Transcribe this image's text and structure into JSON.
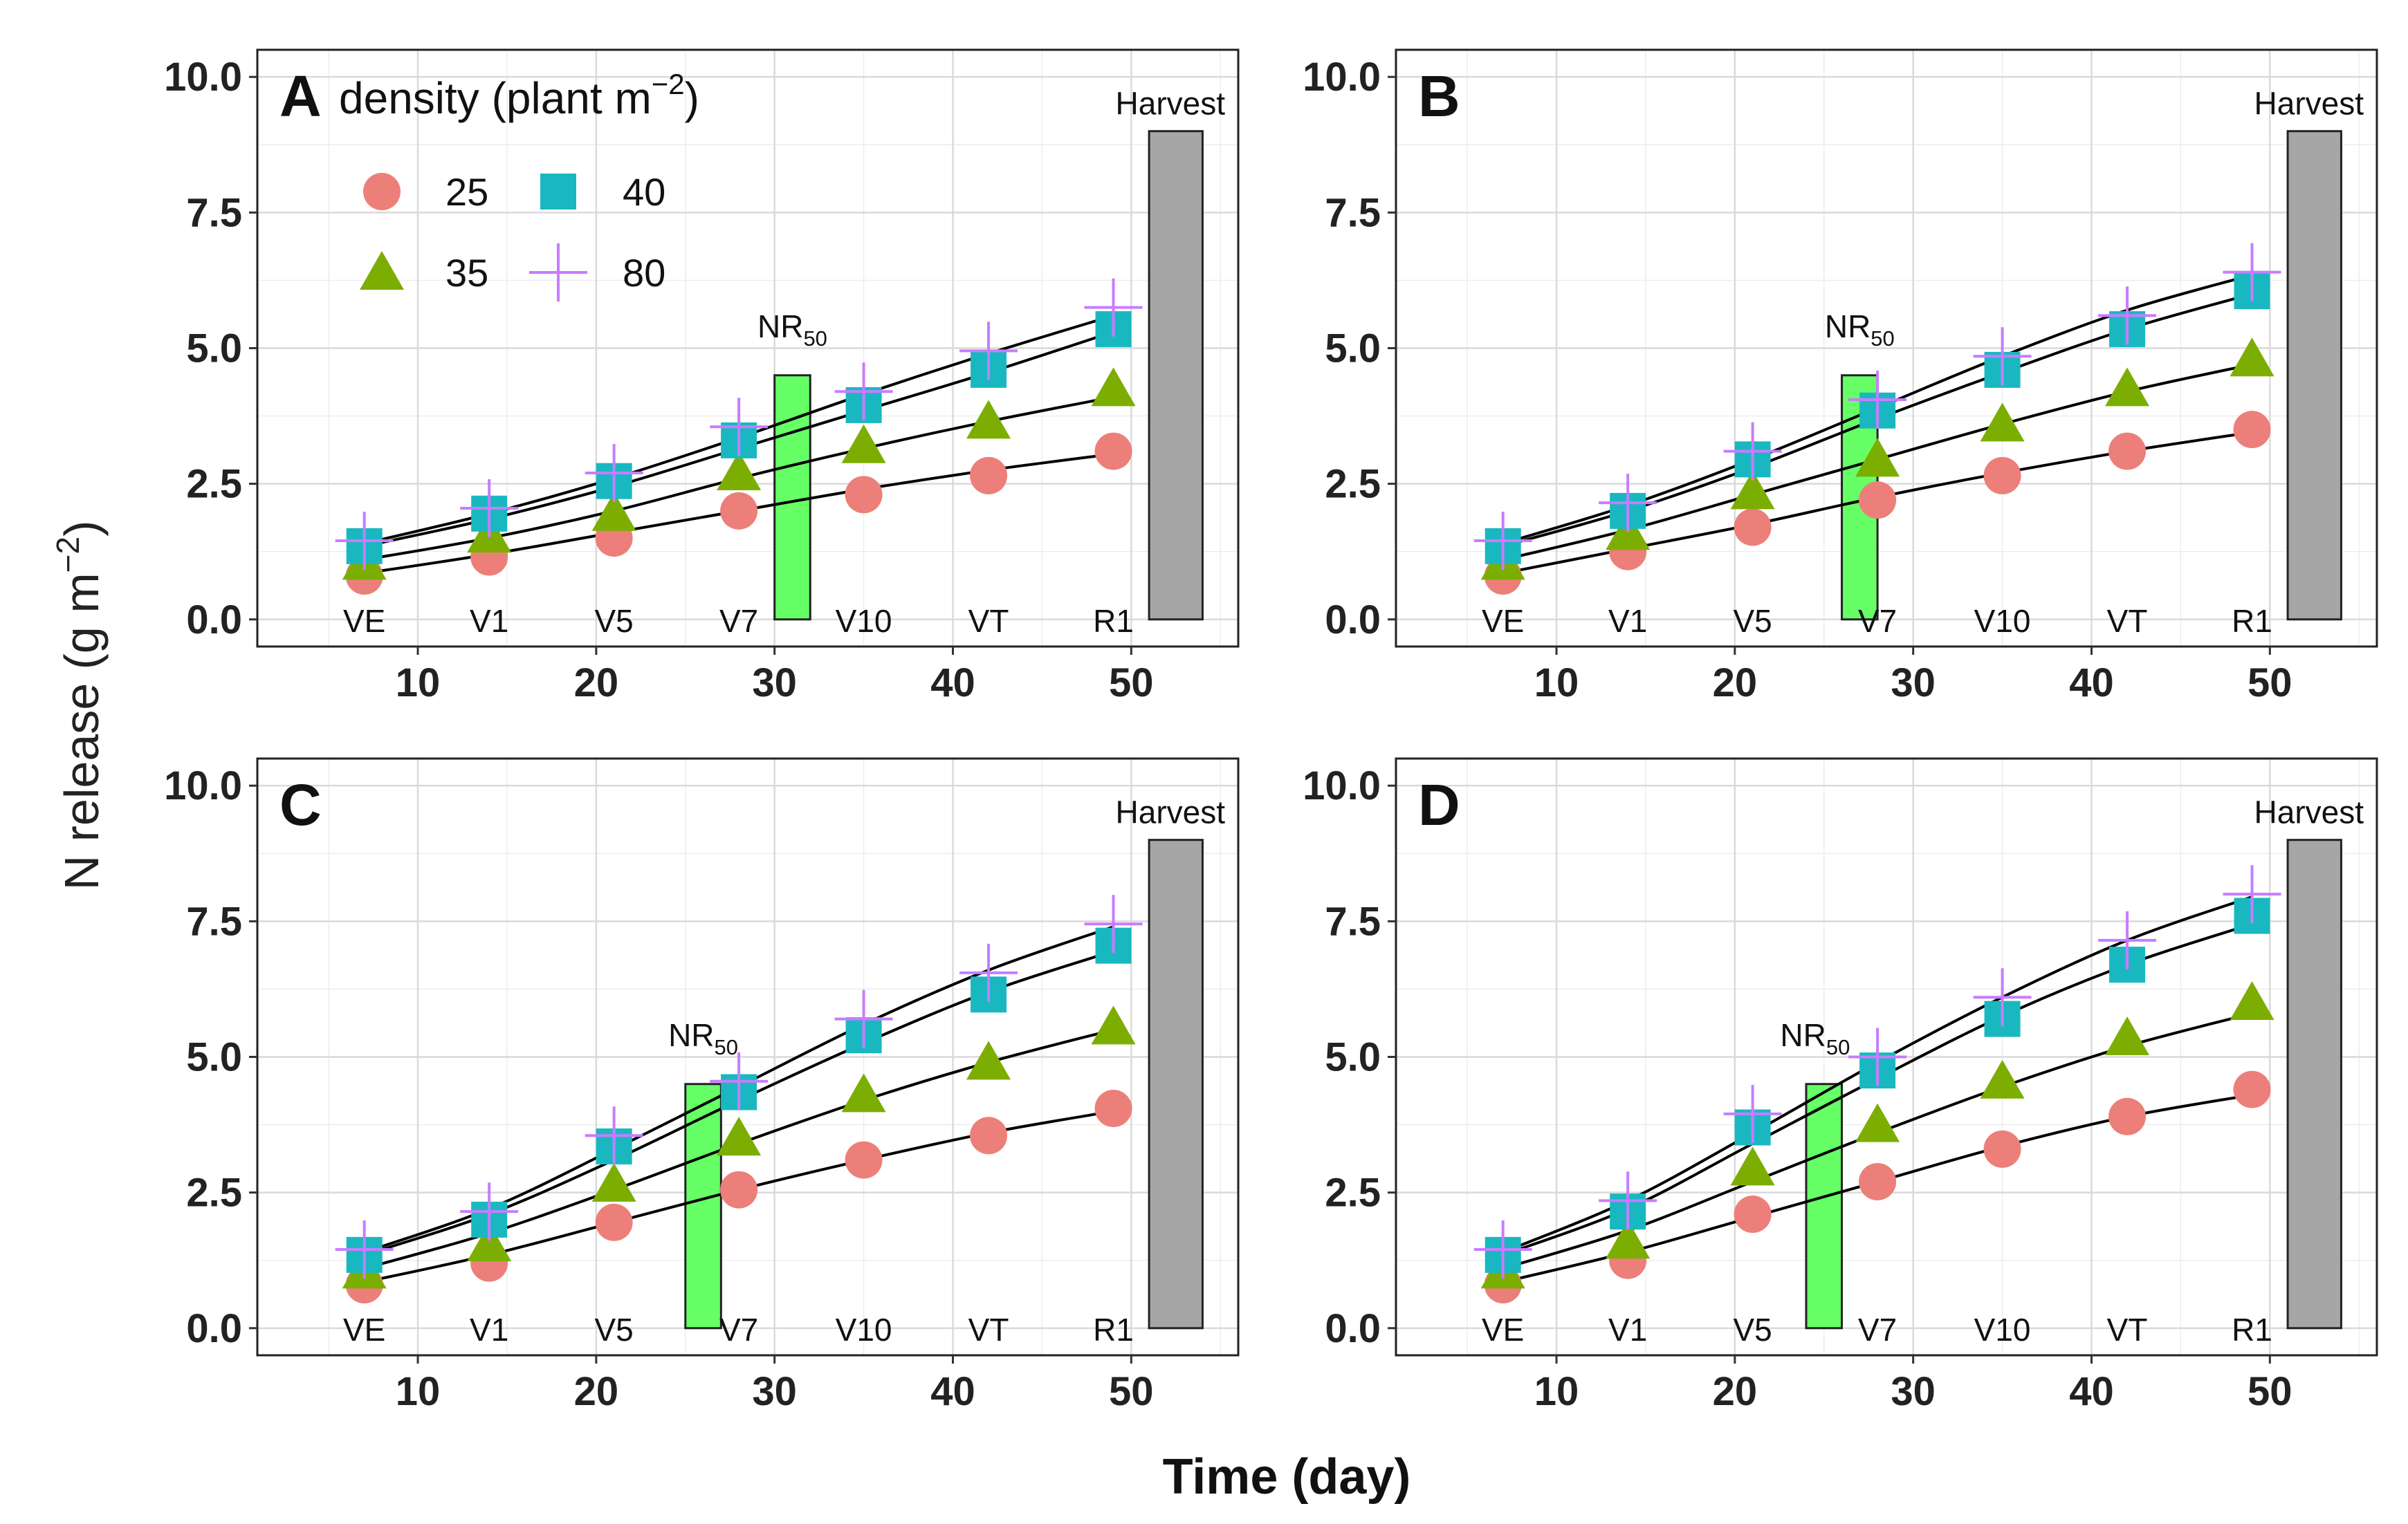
{
  "chart_data": {
    "type": "scatter",
    "x_axis_title": "Time (day)",
    "y_axis_title": {
      "main": "N release (g m",
      "sup": "−2",
      "end": ")"
    },
    "xlim": [
      1,
      56
    ],
    "ylim": [
      -0.5,
      10.5
    ],
    "x_ticks": [
      10,
      20,
      30,
      40,
      50
    ],
    "y_ticks": [
      0,
      2.5,
      5,
      7.5,
      10
    ],
    "y_tick_labels": [
      "0.0",
      "2.5",
      "5.0",
      "7.5",
      "10.0"
    ],
    "grid": true,
    "stage_labels": [
      {
        "x": 7,
        "label": "VE"
      },
      {
        "x": 14,
        "label": "V1"
      },
      {
        "x": 21,
        "label": "V5"
      },
      {
        "x": 28,
        "label": "V7"
      },
      {
        "x": 35,
        "label": "V10"
      },
      {
        "x": 42,
        "label": "VT"
      },
      {
        "x": 49,
        "label": "R1"
      }
    ],
    "harvest_label": "Harvest",
    "harvest_bar": {
      "x0": 51,
      "x1": 54,
      "y0": 0,
      "y1": 9
    },
    "nr50_label": {
      "main": "NR",
      "sub": "50"
    },
    "legend": {
      "title": {
        "main": "density (plant m",
        "sup": "−2",
        "end": ")"
      },
      "placement": "top-left of panel A",
      "entries": [
        {
          "name": "25",
          "shape": "circle",
          "color": "#ec7f79"
        },
        {
          "name": "40",
          "shape": "square",
          "color": "#19b8c0"
        },
        {
          "name": "35",
          "shape": "triangle",
          "color": "#7bae00"
        },
        {
          "name": "80",
          "shape": "plus",
          "color": "#c77cff"
        }
      ]
    },
    "x": [
      7,
      14,
      21,
      28,
      35,
      42,
      49
    ],
    "panels": [
      {
        "letter": "A",
        "nr50_bar": {
          "x0": 30,
          "x1": 32,
          "y0": 0,
          "y1": 4.5
        },
        "nr50_label_pos": {
          "x": 31,
          "y": 5.2
        },
        "series": [
          {
            "name": "25",
            "values": [
              0.8,
              1.15,
              1.5,
              2.0,
              2.3,
              2.65,
              3.1
            ],
            "fit": [
              0.85,
              1.2,
              1.6,
              2.0,
              2.4,
              2.75,
              3.05
            ]
          },
          {
            "name": "35",
            "values": [
              1.05,
              1.55,
              1.95,
              2.7,
              3.2,
              3.65,
              4.25
            ],
            "fit": [
              1.1,
              1.5,
              2.0,
              2.6,
              3.15,
              3.65,
              4.1
            ]
          },
          {
            "name": "40",
            "values": [
              1.35,
              1.95,
              2.55,
              3.3,
              3.95,
              4.6,
              5.35
            ],
            "fit": [
              1.35,
              1.85,
              2.45,
              3.15,
              3.85,
              4.55,
              5.3
            ]
          },
          {
            "name": "80",
            "values": [
              1.45,
              2.05,
              2.7,
              3.55,
              4.2,
              4.95,
              5.75
            ],
            "fit": [
              1.4,
              1.95,
              2.6,
              3.35,
              4.15,
              4.9,
              5.6
            ]
          }
        ]
      },
      {
        "letter": "B",
        "nr50_bar": {
          "x0": 26,
          "x1": 28,
          "y0": 0,
          "y1": 4.5
        },
        "nr50_label_pos": {
          "x": 27,
          "y": 5.2
        },
        "series": [
          {
            "name": "25",
            "values": [
              0.8,
              1.25,
              1.7,
              2.2,
              2.65,
              3.1,
              3.5
            ],
            "fit": [
              0.85,
              1.3,
              1.75,
              2.25,
              2.7,
              3.1,
              3.45
            ]
          },
          {
            "name": "35",
            "values": [
              1.05,
              1.6,
              2.35,
              2.95,
              3.6,
              4.25,
              4.8
            ],
            "fit": [
              1.1,
              1.65,
              2.3,
              2.95,
              3.6,
              4.2,
              4.7
            ]
          },
          {
            "name": "40",
            "values": [
              1.35,
              2.0,
              2.95,
              3.85,
              4.6,
              5.35,
              6.05
            ],
            "fit": [
              1.35,
              2.0,
              2.8,
              3.7,
              4.55,
              5.35,
              6.0
            ]
          },
          {
            "name": "80",
            "values": [
              1.45,
              2.15,
              3.1,
              4.05,
              4.85,
              5.6,
              6.4
            ],
            "fit": [
              1.4,
              2.1,
              2.95,
              3.9,
              4.85,
              5.7,
              6.35
            ]
          }
        ]
      },
      {
        "letter": "C",
        "nr50_bar": {
          "x0": 25,
          "x1": 27,
          "y0": 0,
          "y1": 4.5
        },
        "nr50_label_pos": {
          "x": 26,
          "y": 5.2
        },
        "series": [
          {
            "name": "25",
            "values": [
              0.8,
              1.2,
              1.95,
              2.55,
              3.1,
              3.55,
              4.05
            ],
            "fit": [
              0.85,
              1.35,
              1.95,
              2.55,
              3.1,
              3.6,
              4.0
            ]
          },
          {
            "name": "35",
            "values": [
              1.05,
              1.55,
              2.65,
              3.5,
              4.3,
              4.9,
              5.55
            ],
            "fit": [
              1.1,
              1.75,
              2.55,
              3.4,
              4.2,
              4.9,
              5.5
            ]
          },
          {
            "name": "40",
            "values": [
              1.35,
              2.0,
              3.35,
              4.35,
              5.4,
              6.15,
              7.05
            ],
            "fit": [
              1.35,
              2.1,
              3.1,
              4.2,
              5.25,
              6.2,
              6.95
            ]
          },
          {
            "name": "80",
            "values": [
              1.45,
              2.15,
              3.55,
              4.55,
              5.7,
              6.55,
              7.45
            ],
            "fit": [
              1.4,
              2.2,
              3.3,
              4.45,
              5.6,
              6.6,
              7.4
            ]
          }
        ]
      },
      {
        "letter": "D",
        "nr50_bar": {
          "x0": 24,
          "x1": 26,
          "y0": 0,
          "y1": 4.5
        },
        "nr50_label_pos": {
          "x": 24.5,
          "y": 5.2
        },
        "series": [
          {
            "name": "25",
            "values": [
              0.8,
              1.25,
              2.1,
              2.7,
              3.3,
              3.9,
              4.4
            ],
            "fit": [
              0.85,
              1.4,
              2.05,
              2.7,
              3.35,
              3.9,
              4.3
            ]
          },
          {
            "name": "35",
            "values": [
              1.05,
              1.6,
              2.95,
              3.75,
              4.55,
              5.35,
              6.0
            ],
            "fit": [
              1.1,
              1.8,
              2.7,
              3.6,
              4.45,
              5.2,
              5.8
            ]
          },
          {
            "name": "40",
            "values": [
              1.35,
              2.15,
              3.7,
              4.75,
              5.7,
              6.7,
              7.6
            ],
            "fit": [
              1.35,
              2.2,
              3.4,
              4.6,
              5.75,
              6.7,
              7.45
            ]
          },
          {
            "name": "80",
            "values": [
              1.45,
              2.35,
              3.95,
              5.0,
              6.1,
              7.15,
              8.0
            ],
            "fit": [
              1.4,
              2.35,
              3.6,
              4.9,
              6.1,
              7.15,
              7.95
            ]
          }
        ]
      }
    ]
  }
}
